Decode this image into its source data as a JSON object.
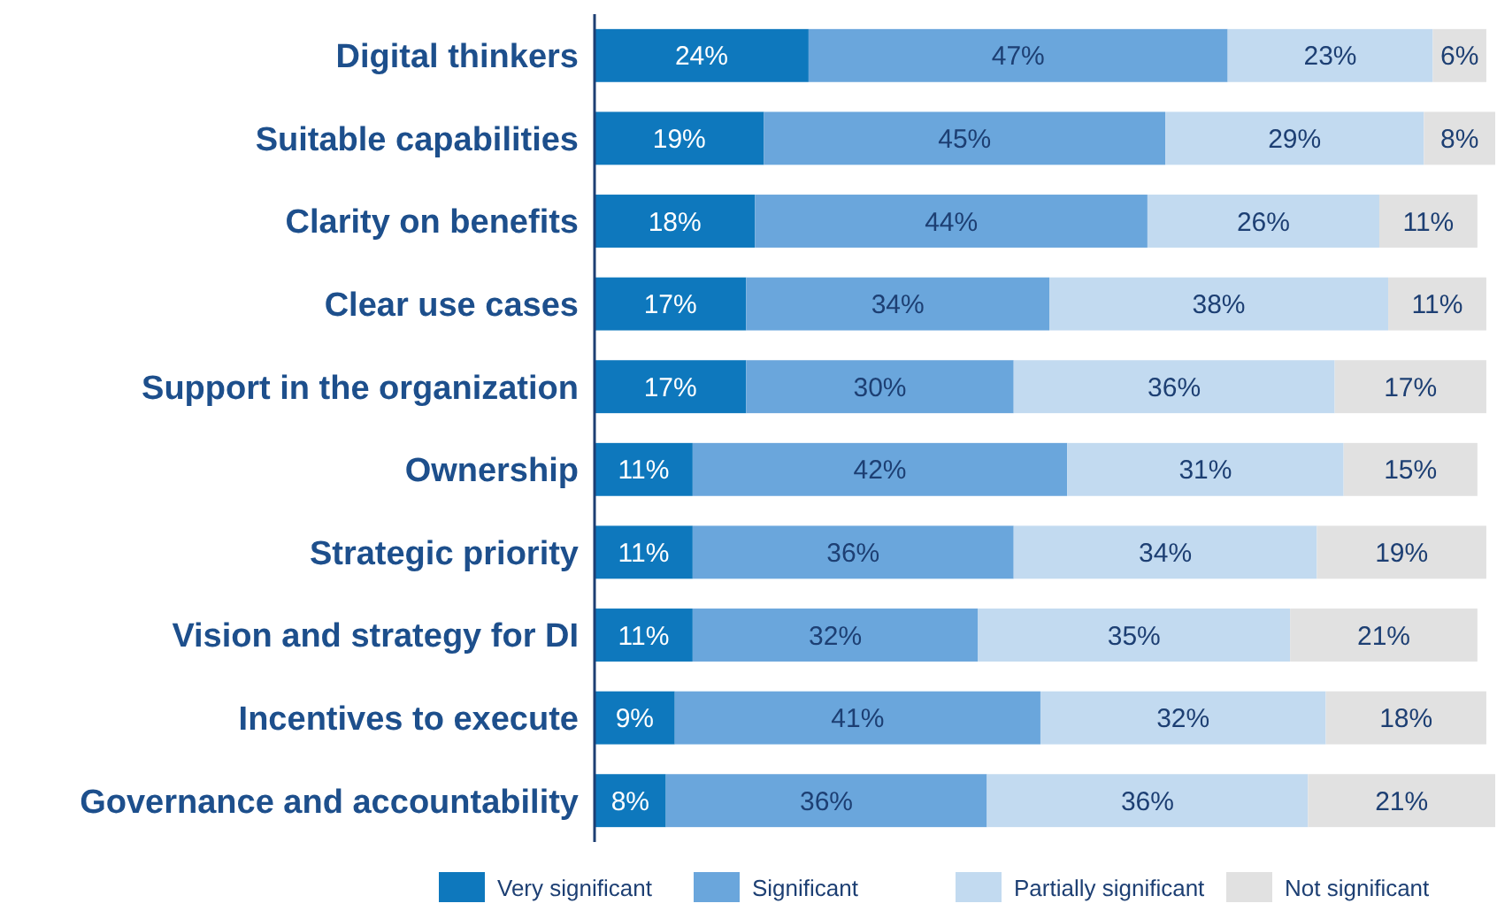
{
  "chart_data": {
    "type": "bar",
    "orientation": "horizontal",
    "stacked": true,
    "tick_labels": "y",
    "legend": "bottom",
    "grid": false,
    "xlim": [
      0,
      101
    ],
    "categories": [
      "Digital thinkers",
      "Suitable capabilities",
      "Clarity on benefits",
      "Clear use cases",
      "Support in the organization",
      "Ownership",
      "Strategic priority",
      "Vision and strategy for DI",
      "Incentives to execute",
      "Governance and accountability"
    ],
    "series": [
      {
        "name": "Very significant",
        "color": "#0e78bd",
        "values": [
          24,
          19,
          18,
          17,
          17,
          11,
          11,
          11,
          9,
          8
        ],
        "value_labels": [
          "24%",
          "19%",
          "18%",
          "17%",
          "17%",
          "11%",
          "11%",
          "11%",
          "9%",
          "8%"
        ]
      },
      {
        "name": "Significant",
        "color": "#6aa6dc",
        "values": [
          47,
          45,
          44,
          34,
          30,
          42,
          36,
          32,
          41,
          36
        ],
        "value_labels": [
          "47%",
          "45%",
          "44%",
          "34%",
          "30%",
          "42%",
          "36%",
          "32%",
          "41%",
          "36%"
        ]
      },
      {
        "name": "Partially significant",
        "color": "#c2daf0",
        "values": [
          23,
          29,
          26,
          38,
          36,
          31,
          34,
          35,
          32,
          36
        ],
        "value_labels": [
          "23%",
          "29%",
          "26%",
          "38%",
          "36%",
          "31%",
          "34%",
          "35%",
          "32%",
          "36%"
        ]
      },
      {
        "name": "Not significant",
        "color": "#e1e1e1",
        "values": [
          6,
          8,
          11,
          11,
          17,
          15,
          19,
          21,
          18,
          21
        ],
        "value_labels": [
          "6%",
          "8%",
          "11%",
          "11%",
          "17%",
          "15%",
          "19%",
          "21%",
          "18%",
          "21%"
        ]
      }
    ]
  }
}
